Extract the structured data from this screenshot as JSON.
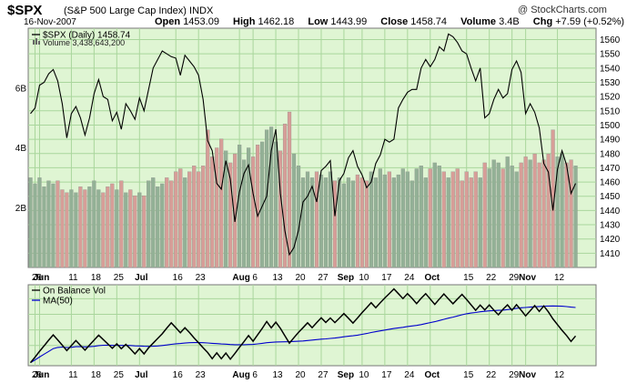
{
  "header": {
    "symbol": "$SPX",
    "name": "(S&P 500 Large Cap Index)",
    "exchange": "INDX",
    "watermark": "@ StockCharts.com",
    "date": "16-Nov-2007",
    "open_label": "Open",
    "open": "1453.09",
    "high_label": "High",
    "high": "1462.18",
    "low_label": "Low",
    "low": "1443.99",
    "close_label": "Close",
    "close": "1458.74",
    "volume_label": "Volume",
    "volume": "3.4B",
    "chg_label": "Chg",
    "chg": "+7.59 (+0.52%)"
  },
  "colors": {
    "panel_bg": "#dff5d3",
    "grid": "#a9d69c",
    "price_line": "#000000",
    "vol_up": "#93b196",
    "vol_down": "#d79e98",
    "obv_line": "#000000",
    "ma_line": "#0000cc"
  },
  "chart_data": [
    {
      "type": "line",
      "panel": "price",
      "legend": [
        {
          "label": "$SPX (Daily) 1458.74",
          "marker": "line"
        },
        {
          "label": "Volume 3,438,643,200",
          "marker": "bars"
        }
      ],
      "ylim": [
        1400,
        1568
      ],
      "yticks": [
        1410,
        1420,
        1430,
        1440,
        1450,
        1460,
        1470,
        1480,
        1490,
        1500,
        1510,
        1520,
        1530,
        1540,
        1550,
        1560
      ],
      "volume_ylim": [
        0,
        8
      ],
      "volume_ticks": [
        {
          "v": 2,
          "label": "2B"
        },
        {
          "v": 4,
          "label": "4B"
        },
        {
          "v": 6,
          "label": "6B"
        }
      ],
      "x_count": 125,
      "x_ticks": [
        {
          "i": 1,
          "label": "29"
        },
        {
          "i": 2,
          "label": "Jun",
          "bold": true
        },
        {
          "i": 9,
          "label": "11"
        },
        {
          "i": 14,
          "label": "18"
        },
        {
          "i": 19,
          "label": "25"
        },
        {
          "i": 24,
          "label": "Jul",
          "bold": true
        },
        {
          "i": 32,
          "label": "16"
        },
        {
          "i": 37,
          "label": "23"
        },
        {
          "i": 46,
          "label": "Aug",
          "bold": true
        },
        {
          "i": 49,
          "label": "6"
        },
        {
          "i": 54,
          "label": "13"
        },
        {
          "i": 59,
          "label": "20"
        },
        {
          "i": 64,
          "label": "27"
        },
        {
          "i": 69,
          "label": "Sep",
          "bold": true
        },
        {
          "i": 73,
          "label": "10"
        },
        {
          "i": 78,
          "label": "17"
        },
        {
          "i": 83,
          "label": "24"
        },
        {
          "i": 88,
          "label": "Oct",
          "bold": true
        },
        {
          "i": 96,
          "label": "15"
        },
        {
          "i": 101,
          "label": "22"
        },
        {
          "i": 106,
          "label": "29"
        },
        {
          "i": 109,
          "label": "Nov",
          "bold": true
        },
        {
          "i": 116,
          "label": "12"
        }
      ],
      "price": [
        1508,
        1512,
        1528,
        1530,
        1536,
        1539,
        1531,
        1515,
        1491,
        1508,
        1513,
        1505,
        1493,
        1505,
        1522,
        1532,
        1520,
        1518,
        1503,
        1509,
        1497,
        1515,
        1510,
        1504,
        1519,
        1510,
        1525,
        1540,
        1546,
        1552,
        1550,
        1548,
        1547,
        1535,
        1549,
        1545,
        1541,
        1535,
        1518,
        1489,
        1482,
        1459,
        1455,
        1475,
        1462,
        1432,
        1453,
        1466,
        1472,
        1452,
        1436,
        1443,
        1450,
        1482,
        1497,
        1452,
        1426,
        1409,
        1414,
        1426,
        1446,
        1450,
        1457,
        1446,
        1468,
        1471,
        1475,
        1436,
        1461,
        1466,
        1477,
        1482,
        1471,
        1465,
        1456,
        1460,
        1473,
        1479,
        1490,
        1488,
        1490,
        1512,
        1518,
        1523,
        1525,
        1525,
        1540,
        1546,
        1541,
        1546,
        1555,
        1552,
        1564,
        1562,
        1558,
        1552,
        1550,
        1540,
        1531,
        1540,
        1505,
        1508,
        1518,
        1525,
        1519,
        1522,
        1539,
        1545,
        1537,
        1508,
        1515,
        1509,
        1498,
        1473,
        1467,
        1440,
        1469,
        1482,
        1472,
        1452,
        1459
      ],
      "volume": [
        3.0,
        2.8,
        3.0,
        2.7,
        2.9,
        2.8,
        2.9,
        2.6,
        2.5,
        2.6,
        2.5,
        2.7,
        2.6,
        2.7,
        2.9,
        2.6,
        2.5,
        2.7,
        2.8,
        2.6,
        2.9,
        2.5,
        2.6,
        2.4,
        2.5,
        2.4,
        2.9,
        3.0,
        2.7,
        2.8,
        3.0,
        2.9,
        3.2,
        3.3,
        3.0,
        3.2,
        3.4,
        3.2,
        3.4,
        4.6,
        3.7,
        4.0,
        4.3,
        3.9,
        3.5,
        3.8,
        4.1,
        3.6,
        4.0,
        3.7,
        4.1,
        4.2,
        4.6,
        4.7,
        4.2,
        3.9,
        4.8,
        5.2,
        3.8,
        3.4,
        3.0,
        3.2,
        3.0,
        3.2,
        3.1,
        3.0,
        3.2,
        2.9,
        3.0,
        2.8,
        3.0,
        2.9,
        3.1,
        3.0,
        2.9,
        3.2,
        3.0,
        3.3,
        3.1,
        3.2,
        3.0,
        3.1,
        3.3,
        3.2,
        2.9,
        3.3,
        3.4,
        3.0,
        3.3,
        3.5,
        3.4,
        3.2,
        3.0,
        3.2,
        3.3,
        2.9,
        3.2,
        3.0,
        3.2,
        3.0,
        3.5,
        3.3,
        3.6,
        3.5,
        3.3,
        3.7,
        3.4,
        3.2,
        3.5,
        3.7,
        3.6,
        3.8,
        3.5,
        3.6,
        3.8,
        4.6,
        3.7,
        3.8,
        3.5,
        3.6,
        3.4
      ]
    },
    {
      "type": "line",
      "panel": "indicator",
      "legend": [
        {
          "label": "On Balance Vol",
          "marker": "line"
        },
        {
          "label": "MA(50)",
          "marker": "line"
        }
      ],
      "obv": [
        -11,
        -7.5,
        -3.7,
        -0.2,
        3.4,
        6.8,
        3.6,
        0.2,
        -3.3,
        -0.1,
        3.1,
        0.1,
        -3.0,
        0.3,
        3.4,
        6.6,
        3.8,
        1.1,
        -1.8,
        1.0,
        -2.1,
        0.7,
        -2.2,
        -5.4,
        -2.0,
        -5.4,
        -1.5,
        1.5,
        4.5,
        7.5,
        11.2,
        14.5,
        11.4,
        8.2,
        11.4,
        8.3,
        4.9,
        1.7,
        -1.5,
        -4.5,
        -8.5,
        -4.7,
        -8.5,
        -4.9,
        -8.8,
        -5.2,
        -1.2,
        2.4,
        6.4,
        2.7,
        6.8,
        10.9,
        15.4,
        11.3,
        15.0,
        11.0,
        6.3,
        1.5,
        5.0,
        8.4,
        11.4,
        14.5,
        11.4,
        14.7,
        17.8,
        14.8,
        17.7,
        14.7,
        17.6,
        20.5,
        17.5,
        14.4,
        17.7,
        21.1,
        24.2,
        27.5,
        24.3,
        27.5,
        30.5,
        33.4,
        36.3,
        33.3,
        30.1,
        33.3,
        30.3,
        26.9,
        30.3,
        33.3,
        29.8,
        26.4,
        29.8,
        33.1,
        29.9,
        26.8,
        29.8,
        32.8,
        29.6,
        26.1,
        22.6,
        25.9,
        22.8,
        26.0,
        22.7,
        19.7,
        23.2,
        26.1,
        22.6,
        26.2,
        22.7,
        19.0,
        22.3,
        25.6,
        21.9,
        25.4,
        21.6,
        17.1,
        13.4,
        9.7,
        6.4,
        2.6,
        6.1
      ]
    }
  ]
}
